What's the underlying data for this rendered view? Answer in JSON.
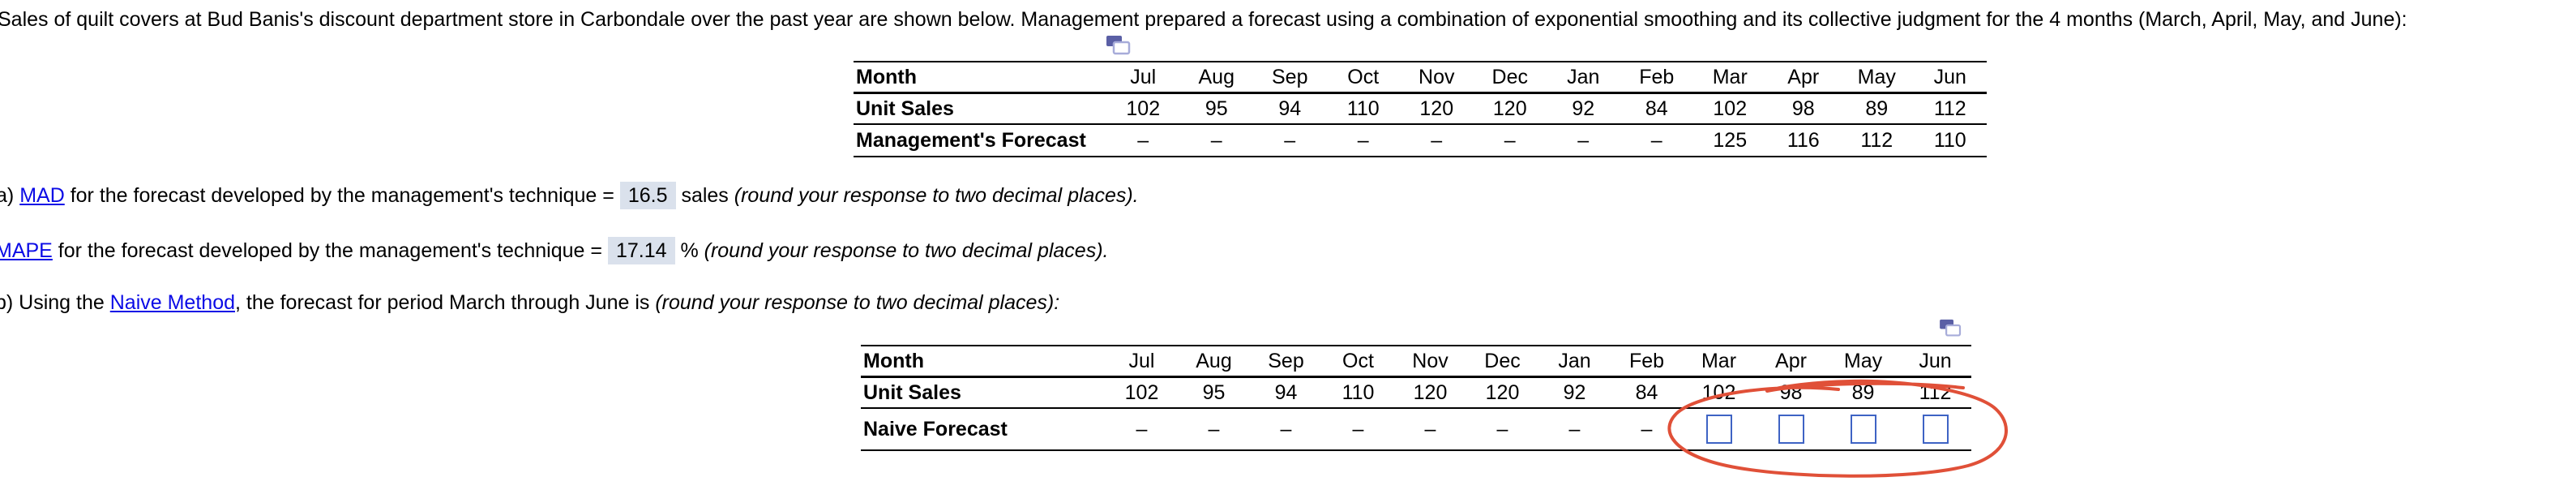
{
  "heading": "Sales of quilt covers at Bud Banis's discount department store in Carbondale over the past year are shown below.  Management prepared a forecast using a combination of exponential smoothing and its collective judgment for the 4 months (March, April, May, and June):",
  "colors": {
    "link_blue": "#0b0be6",
    "answer_highlight": "#dae1ec",
    "input_border_blue": "#3e63c4",
    "annotation_red": "#e05038",
    "icon_slate": "#5a5fa5",
    "icon_light": "#a7acd9"
  },
  "icons": {
    "table1_popup": "open-popup-window",
    "table2_popup": "open-popup-window"
  },
  "question_a": {
    "prefix": "a) ",
    "link": "MAD",
    "middle": " for the forecast developed by the management's technique = ",
    "answer": "16.5",
    "after": " sales ",
    "italic": "(round your response to two decimal places)."
  },
  "question_mape": {
    "prefix": "",
    "link": "MAPE",
    "middle": " for the forecast developed by the management's technique = ",
    "answer": "17.14",
    "after": " % ",
    "italic": "(round your response to two decimal places)."
  },
  "question_b": {
    "prefix": "b) Using the ",
    "link": "Naive Method",
    "middle": ", the forecast for period March through June is ",
    "italic": "(round your response to two decimal places):"
  },
  "table1": {
    "name": "sales-and-management-forecast-table",
    "columns": [
      "Jul",
      "Aug",
      "Sep",
      "Oct",
      "Nov",
      "Dec",
      "Jan",
      "Feb",
      "Mar",
      "Apr",
      "May",
      "Jun"
    ],
    "rows": [
      {
        "label": "Month",
        "cells": []
      },
      {
        "label": "Unit Sales",
        "cells": [
          "102",
          "95",
          "94",
          "110",
          "120",
          "120",
          "92",
          "84",
          "102",
          "98",
          "89",
          "112"
        ]
      },
      {
        "label": "Management's Forecast",
        "cells": [
          "–",
          "–",
          "–",
          "–",
          "–",
          "–",
          "–",
          "–",
          "125",
          "116",
          "112",
          "110"
        ]
      }
    ]
  },
  "table2": {
    "name": "naive-forecast-table",
    "columns": [
      "Jul",
      "Aug",
      "Sep",
      "Oct",
      "Nov",
      "Dec",
      "Jan",
      "Feb",
      "Mar",
      "Apr",
      "May",
      "Jun"
    ],
    "rows": [
      {
        "label": "Month",
        "cells": []
      },
      {
        "label": "Unit Sales",
        "cells": [
          "102",
          "95",
          "94",
          "110",
          "120",
          "120",
          "92",
          "84",
          "102",
          "98",
          "89",
          "112"
        ]
      },
      {
        "label": "Naive Forecast",
        "cells": [
          "–",
          "–",
          "–",
          "–",
          "–",
          "–",
          "–",
          "–",
          {
            "input": true
          },
          {
            "input": true
          },
          {
            "input": true
          },
          {
            "input": true
          }
        ]
      }
    ]
  }
}
